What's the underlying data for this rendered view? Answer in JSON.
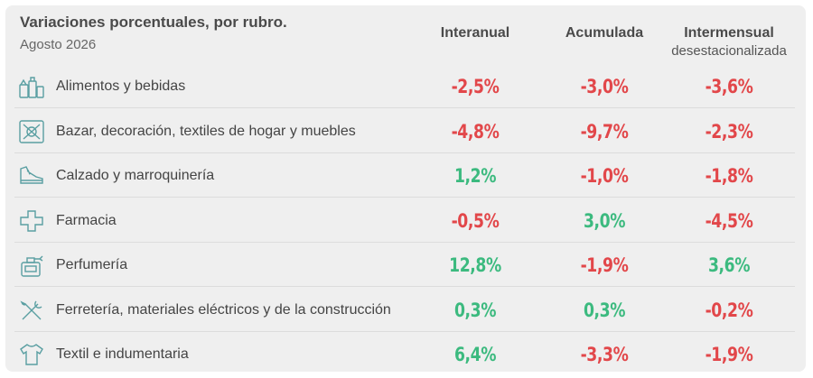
{
  "header": {
    "title": "Variaciones porcentuales, por rubro.",
    "subtitle": "Agosto 2026",
    "col_interanual": "Interanual",
    "col_acumulada": "Acumulada",
    "col_intermensual": "Intermensual",
    "col_intermensual_sub": "desestacionalizada"
  },
  "colors": {
    "negative": "#e2474a",
    "positive": "#3cba7f",
    "icon": "#5a9fa2"
  },
  "rows": [
    {
      "label": "Alimentos y bebidas",
      "icon": "grocery-icon",
      "interanual": "-2,5%",
      "acumulada": "-3,0%",
      "intermensual": "-3,6%",
      "signs": [
        "neg",
        "neg",
        "neg"
      ]
    },
    {
      "label": "Bazar, decoración, textiles de hogar y muebles",
      "icon": "household-icon",
      "interanual": "-4,8%",
      "acumulada": "-9,7%",
      "intermensual": "-2,3%",
      "signs": [
        "neg",
        "neg",
        "neg"
      ]
    },
    {
      "label": "Calzado y marroquinería",
      "icon": "shoe-icon",
      "interanual": "1,2%",
      "acumulada": "-1,0%",
      "intermensual": "-1,8%",
      "signs": [
        "pos",
        "neg",
        "neg"
      ]
    },
    {
      "label": "Farmacia",
      "icon": "pharmacy-cross-icon",
      "interanual": "-0,5%",
      "acumulada": "3,0%",
      "intermensual": "-4,5%",
      "signs": [
        "neg",
        "pos",
        "neg"
      ]
    },
    {
      "label": "Perfumería",
      "icon": "perfume-icon",
      "interanual": "12,8%",
      "acumulada": "-1,9%",
      "intermensual": "3,6%",
      "signs": [
        "pos",
        "neg",
        "pos"
      ]
    },
    {
      "label": "Ferretería, materiales eléctricos y de la construcción",
      "icon": "tools-icon",
      "interanual": "0,3%",
      "acumulada": "0,3%",
      "intermensual": "-0,2%",
      "signs": [
        "pos",
        "pos",
        "neg"
      ]
    },
    {
      "label": "Textil e indumentaria",
      "icon": "shirt-icon",
      "interanual": "6,4%",
      "acumulada": "-3,3%",
      "intermensual": "-1,9%",
      "signs": [
        "pos",
        "neg",
        "neg"
      ]
    }
  ]
}
